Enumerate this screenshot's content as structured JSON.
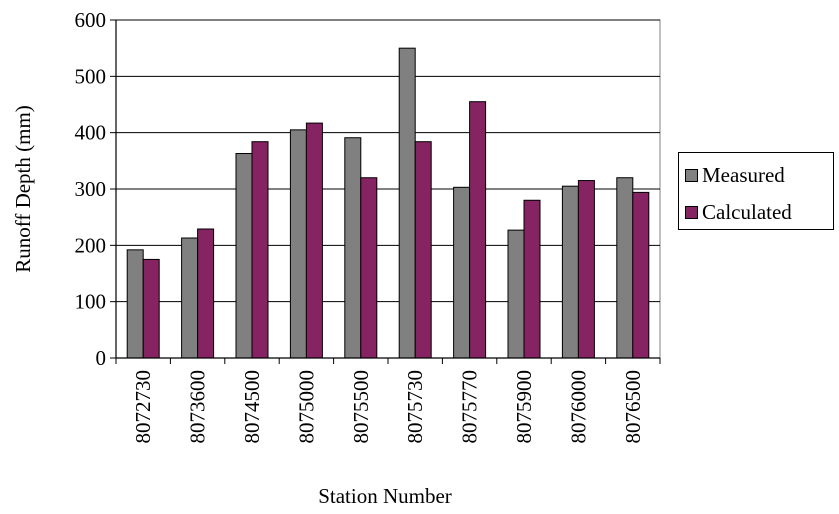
{
  "chart_data": {
    "type": "bar",
    "xlabel": "Station Number",
    "ylabel": "Runoff Depth (mm)",
    "ylim": [
      0,
      600
    ],
    "yticks": [
      0,
      100,
      200,
      300,
      400,
      500,
      600
    ],
    "grid": true,
    "legend_position": "right",
    "categories": [
      "8072730",
      "8073600",
      "8074500",
      "8075000",
      "8075500",
      "8075730",
      "8075770",
      "8075900",
      "8076000",
      "8076500"
    ],
    "series": [
      {
        "name": "Measured",
        "color": "#808080",
        "values": [
          192,
          213,
          363,
          405,
          391,
          550,
          303,
          227,
          305,
          320
        ]
      },
      {
        "name": "Calculated",
        "color": "#862362",
        "values": [
          175,
          229,
          384,
          417,
          320,
          384,
          455,
          280,
          315,
          294
        ]
      }
    ]
  }
}
